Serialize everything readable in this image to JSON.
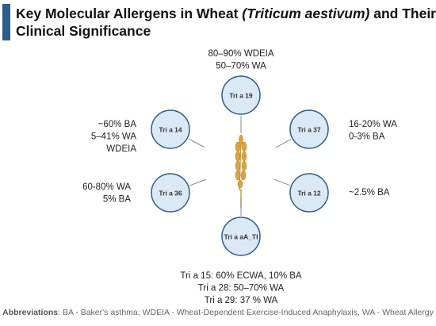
{
  "header": {
    "title_start": "Key Molecular Allergens in Wheat ",
    "title_italic": "(Triticum aestivum)",
    "title_end": " and Their",
    "title_line2": "Clinical Significance"
  },
  "nodes": [
    {
      "label": "Tri a 19",
      "notes": [
        "80–90% WDEIA",
        "50–70% WA"
      ]
    },
    {
      "label": "Tri a 37",
      "notes": [
        "16-20% WA",
        "0-3% BA"
      ]
    },
    {
      "label": "Tri a 12",
      "notes": [
        "~2.5% BA"
      ]
    },
    {
      "label": "Tri a aA_TI",
      "notes": [
        "Tri a 15: 60% ECWA, 10% BA",
        "Tri a 28: 50–70% WA",
        "Tri a 29: 37 % WA"
      ]
    },
    {
      "label": "Tri a 36",
      "notes": [
        "60-80% WA",
        "5% BA"
      ]
    },
    {
      "label": "Tri a 14",
      "notes": [
        "~60% BA",
        "5–41% WA",
        "WDEIA"
      ]
    }
  ],
  "footer": {
    "label": "Abbreviations",
    "text": ": BA - Baker's asthma; WDEIA - Wheat-Dependent Exercise-Induced Anaphylaxis, WA - Wheat Allergy"
  }
}
